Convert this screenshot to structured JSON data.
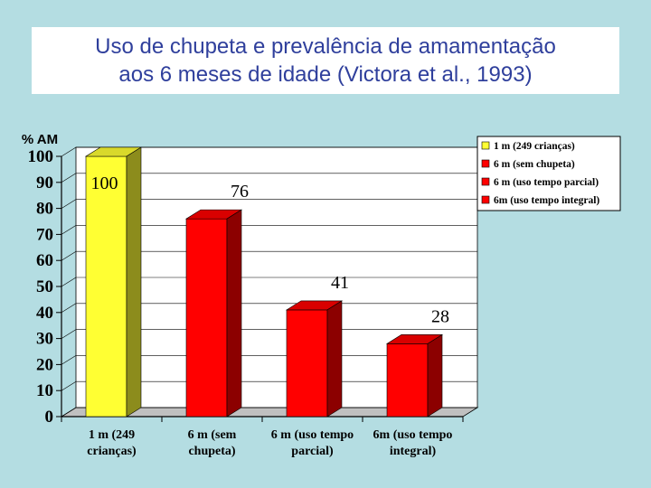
{
  "title": {
    "line1": "Uso de chupeta e prevalência de amamentação",
    "line2": "aos 6 meses de idade (Victora et al., 1993)"
  },
  "chart_data": {
    "type": "bar",
    "title": "Uso de chupeta e prevalência de amamentação aos 6 meses de idade (Victora et al., 1993)",
    "ylabel": "% AM",
    "xlabel": "",
    "ylim": [
      0,
      100
    ],
    "yticks": [
      "0",
      "10",
      "20",
      "30",
      "40",
      "50",
      "60",
      "70",
      "80",
      "90",
      "100"
    ],
    "categories": [
      [
        "1 m (249",
        "crianças)"
      ],
      [
        "6 m (sem",
        "chupeta)"
      ],
      [
        "6 m (uso tempo",
        "parcial)"
      ],
      [
        "6m (uso tempo",
        "integral)"
      ]
    ],
    "values": [
      100,
      76,
      41,
      28
    ],
    "data_labels": [
      "100",
      "76",
      "41",
      "28"
    ],
    "colors": [
      "#ffff33",
      "#ff0000",
      "#ff0000",
      "#ff0000"
    ],
    "legend": {
      "placement": "right",
      "entries": [
        {
          "label": "1 m (249 crianças)",
          "color": "#ffff33"
        },
        {
          "label": "6 m (sem chupeta)",
          "color": "#ff0000"
        },
        {
          "label": "6 m (uso tempo parcial)",
          "color": "#ff0000"
        },
        {
          "label": "6m (uso tempo integral)",
          "color": "#ff0000"
        }
      ]
    },
    "grid": true,
    "style": "3d"
  }
}
